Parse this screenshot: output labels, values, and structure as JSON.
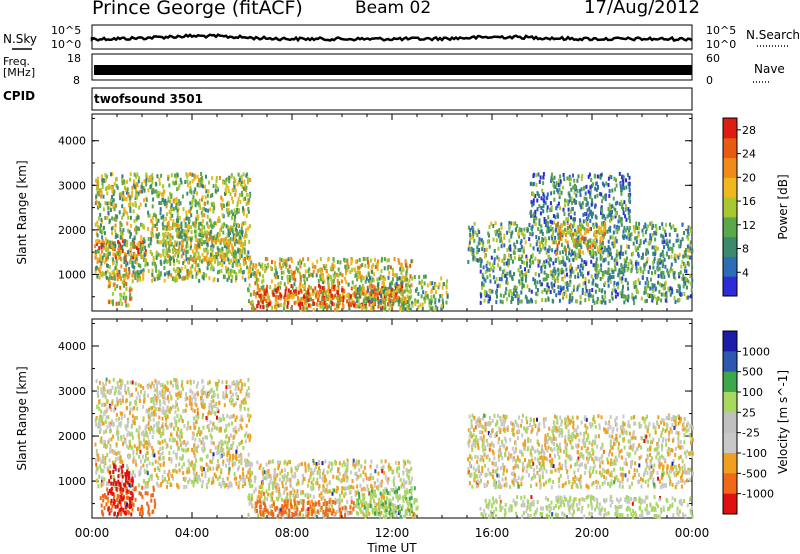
{
  "header": {
    "station": "Prince George (fitACF)",
    "beam": "Beam 02",
    "date": "17/Aug/2012"
  },
  "panels": {
    "nsky": {
      "label": "N.Sky",
      "tick_high": "10^5",
      "tick_low": "10^0"
    },
    "nsearch": {
      "label": "N.Search",
      "tick_high": "10^5",
      "tick_low": "10^0"
    },
    "freq": {
      "label_line1": "Freq.",
      "label_line2": "[MHz]",
      "tick_high": "18",
      "tick_low": "8"
    },
    "nave": {
      "label": "Nave",
      "tick_high": "60",
      "tick_low": "0"
    },
    "cpid": {
      "label": "CPID",
      "value": "twofsound 3501"
    }
  },
  "colors": {
    "power": [
      "#2e2bd8",
      "#2d6db8",
      "#3b8a6d",
      "#5aa84a",
      "#a8c832",
      "#f0b81c",
      "#f08a18",
      "#e65a12",
      "#dc1e12"
    ],
    "velocity": [
      "#e01010",
      "#f06818",
      "#f0a020",
      "#c8c8c8",
      "#c0c0c0",
      "#a8d860",
      "#3ca84a",
      "#2c58b0",
      "#1c1ca8"
    ]
  },
  "chart_data": [
    {
      "type": "heatmap",
      "title": "",
      "xlabel": "Time UT",
      "ylabel": "Slant Range [km]",
      "xlim": [
        "00:00",
        "24:00"
      ],
      "ylim": [
        180,
        4600
      ],
      "x_ticks": [
        "00:00",
        "04:00",
        "08:00",
        "12:00",
        "16:00",
        "20:00",
        "00:00"
      ],
      "y_ticks": [
        1000,
        2000,
        3000,
        4000
      ],
      "colorbar_label": "Power [dB]",
      "colorbar_ticks": [
        4,
        8,
        12,
        16,
        20,
        24,
        28
      ],
      "scatter_regions": [
        {
          "t0": 0.05,
          "t1": 2.2,
          "r0": 1350,
          "r1": 1800,
          "level": 0.82
        },
        {
          "t0": 0.1,
          "t1": 6.3,
          "r0": 900,
          "r1": 3300,
          "level": 0.45
        },
        {
          "t0": 0.6,
          "t1": 1.6,
          "r0": 350,
          "r1": 1150,
          "level": 0.62
        },
        {
          "t0": 2.8,
          "t1": 6.0,
          "r0": 1350,
          "r1": 2200,
          "level": 0.5
        },
        {
          "t0": 6.2,
          "t1": 12.8,
          "r0": 250,
          "r1": 1400,
          "level": 0.55
        },
        {
          "t0": 6.5,
          "t1": 12.5,
          "r0": 300,
          "r1": 800,
          "level": 0.88
        },
        {
          "t0": 10.5,
          "t1": 14.2,
          "r0": 250,
          "r1": 1000,
          "level": 0.4
        },
        {
          "t0": 15.0,
          "t1": 24.0,
          "r0": 1300,
          "r1": 2200,
          "level": 0.35
        },
        {
          "t0": 15.5,
          "t1": 24.0,
          "r0": 400,
          "r1": 1300,
          "level": 0.32
        },
        {
          "t0": 18.5,
          "t1": 20.5,
          "r0": 1500,
          "r1": 2200,
          "level": 0.6
        },
        {
          "t0": 17.5,
          "t1": 21.5,
          "r0": 2200,
          "r1": 3300,
          "level": 0.25
        }
      ]
    },
    {
      "type": "heatmap",
      "title": "",
      "xlabel": "Time UT",
      "ylabel": "Slant Range [km]",
      "xlim": [
        "00:00",
        "24:00"
      ],
      "ylim": [
        180,
        4600
      ],
      "x_ticks": [
        "00:00",
        "04:00",
        "08:00",
        "12:00",
        "16:00",
        "20:00",
        "00:00"
      ],
      "y_ticks": [
        1000,
        2000,
        3000,
        4000
      ],
      "colorbar_label": "Velocity [m s^-1]",
      "colorbar_ticks": [
        1000,
        500,
        100,
        25,
        -25,
        -100,
        -500,
        -1000
      ],
      "scatter_regions": [
        {
          "t0": 0.1,
          "t1": 6.3,
          "r0": 900,
          "r1": 3300,
          "velocity": 0
        },
        {
          "t0": 0.3,
          "t1": 2.5,
          "r0": 300,
          "r1": 900,
          "velocity": -300
        },
        {
          "t0": 0.6,
          "t1": 1.6,
          "r0": 300,
          "r1": 1400,
          "velocity": -700
        },
        {
          "t0": 6.2,
          "t1": 12.8,
          "r0": 250,
          "r1": 1500,
          "velocity": 0
        },
        {
          "t0": 6.5,
          "t1": 10.5,
          "r0": 250,
          "r1": 600,
          "velocity": -200
        },
        {
          "t0": 10.5,
          "t1": 13.0,
          "r0": 250,
          "r1": 900,
          "velocity": 80
        },
        {
          "t0": 15.0,
          "t1": 24.0,
          "r0": 900,
          "r1": 2500,
          "velocity": 0
        },
        {
          "t0": 15.5,
          "t1": 24.0,
          "r0": 250,
          "r1": 700,
          "velocity": 40
        }
      ]
    }
  ]
}
